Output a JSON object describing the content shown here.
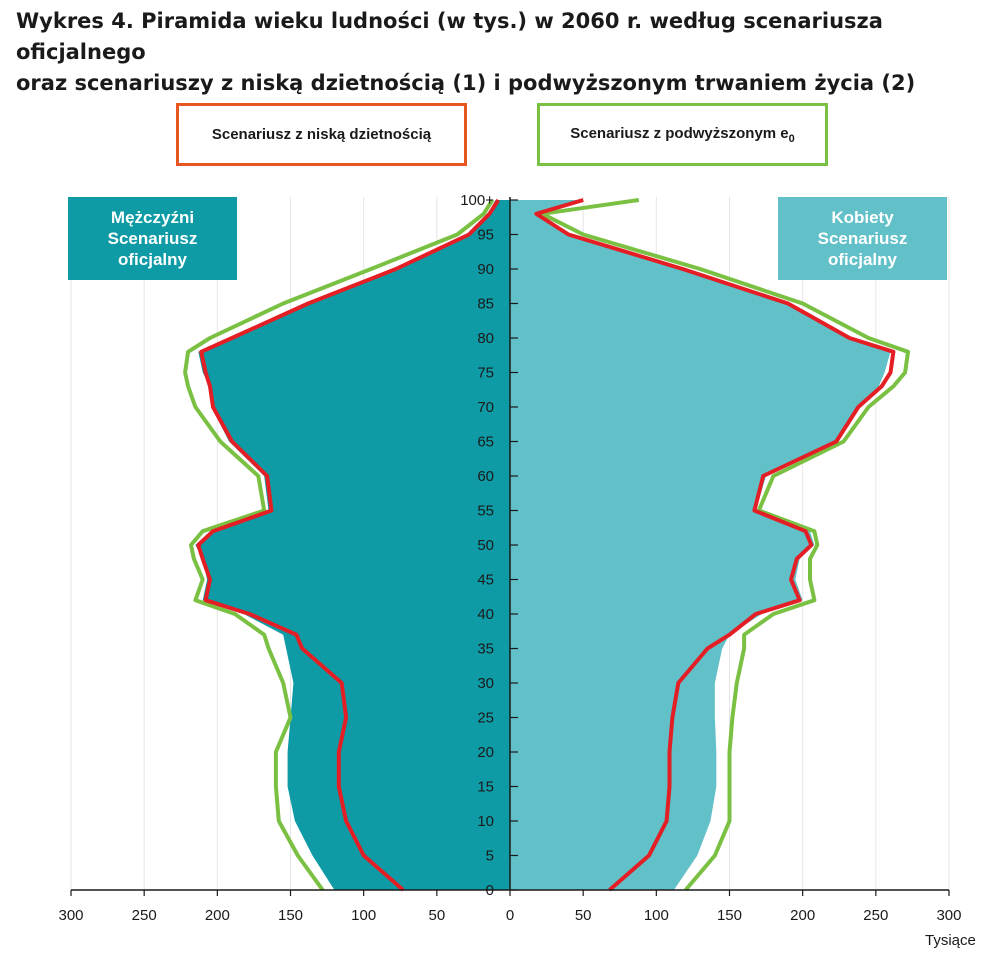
{
  "title": {
    "line1": "Wykres 4. Piramida wieku ludności (w tys.) w 2060 r. według scenariusza oficjalnego",
    "line2": "oraz scenariuszy z niską dzietnością (1) i podwyższonym trwaniem życia (2)"
  },
  "legend": {
    "low_fertility": "Scenariusz z niską dzietnością",
    "high_e0_text": "Scenariusz z podwyższonym e",
    "high_e0_sub": "0"
  },
  "labels": {
    "men": [
      "Mężczyźni",
      "Scenariusz",
      "oficjalny"
    ],
    "women": [
      "Kobiety",
      "Scenariusz",
      "oficjalny"
    ],
    "unit": "Tysiące"
  },
  "colors": {
    "men_fill": "#0e9ba5",
    "women_fill": "#62c0c8",
    "low_fertility_line": "#e31e24",
    "high_e0_line": "#7ac143",
    "grid": "#e6e6e6"
  },
  "chart_data": {
    "type": "population-pyramid",
    "x_ticks": [
      300,
      250,
      200,
      150,
      100,
      50,
      0,
      50,
      100,
      150,
      200,
      250,
      300
    ],
    "x_range": [
      -300,
      300
    ],
    "y_ticks": [
      "0",
      "5",
      "10",
      "15",
      "20",
      "25",
      "30",
      "35",
      "40",
      "45",
      "50",
      "55",
      "60",
      "65",
      "70",
      "75",
      "80",
      "85",
      "90",
      "95",
      "100+"
    ],
    "ages": [
      0,
      5,
      10,
      15,
      20,
      25,
      30,
      35,
      37,
      40,
      42,
      45,
      48,
      50,
      52,
      55,
      60,
      65,
      70,
      73,
      75,
      78,
      80,
      85,
      90,
      95,
      98,
      100
    ],
    "series": [
      {
        "name": "Mężczyźni Scenariusz oficjalny",
        "side": "left",
        "values": [
          120,
          135,
          147,
          152,
          152,
          150,
          148,
          153,
          155,
          182,
          210,
          207,
          210,
          215,
          205,
          165,
          168,
          192,
          204,
          205,
          210,
          213,
          193,
          140,
          80,
          30,
          15,
          10
        ]
      },
      {
        "name": "Kobiety Scenariusz oficjalny",
        "side": "right",
        "values": [
          112,
          128,
          137,
          141,
          141,
          140,
          140,
          145,
          150,
          172,
          200,
          195,
          198,
          208,
          205,
          168,
          175,
          224,
          237,
          252,
          256,
          260,
          230,
          190,
          120,
          42,
          18,
          50
        ]
      },
      {
        "name": "Scenariusz z niską dzietnością",
        "side": "both",
        "color": "#e31e24",
        "men": [
          73,
          100,
          112,
          117,
          117,
          112,
          115,
          142,
          146,
          178,
          208,
          205,
          210,
          213,
          203,
          163,
          166,
          190,
          203,
          205,
          208,
          211,
          190,
          138,
          78,
          28,
          14,
          8
        ],
        "women": [
          68,
          95,
          107,
          109,
          109,
          111,
          115,
          135,
          150,
          168,
          198,
          192,
          196,
          206,
          202,
          167,
          173,
          223,
          238,
          254,
          260,
          262,
          232,
          190,
          118,
          40,
          18,
          50
        ]
      },
      {
        "name": "Scenariusz z podwyższonym e0",
        "side": "both",
        "color": "#7ac143",
        "men": [
          128,
          145,
          158,
          160,
          160,
          150,
          155,
          165,
          168,
          188,
          215,
          210,
          216,
          218,
          210,
          168,
          172,
          198,
          215,
          220,
          222,
          220,
          205,
          155,
          95,
          36,
          18,
          12
        ],
        "women": [
          120,
          140,
          150,
          150,
          150,
          152,
          155,
          160,
          160,
          180,
          208,
          205,
          205,
          210,
          208,
          170,
          180,
          228,
          245,
          262,
          270,
          272,
          245,
          200,
          130,
          50,
          22,
          88
        ]
      }
    ]
  }
}
